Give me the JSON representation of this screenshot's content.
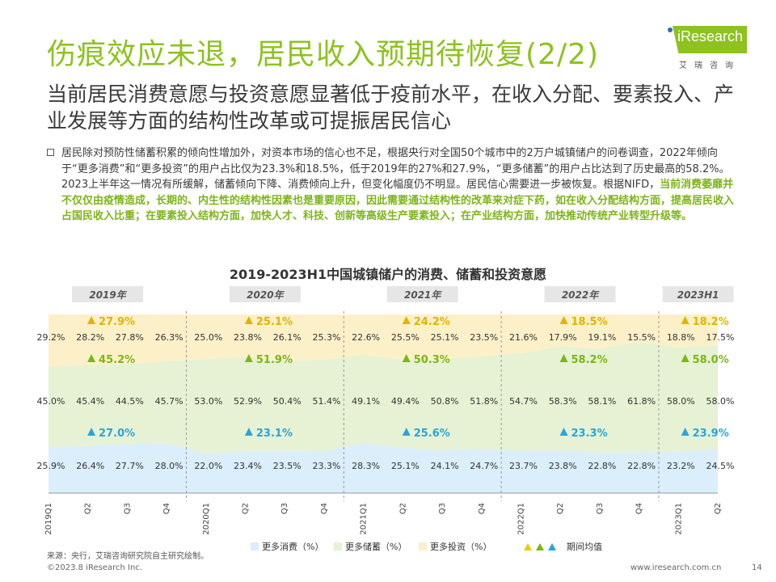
{
  "header": {
    "title": "伤痕效应未退，居民收入预期待恢复(2/2)",
    "logo_text": "iResearch",
    "logo_sub": "艾瑞咨询",
    "subtitle": "当前居民消费意愿与投资意愿显著低于疫前水平，在收入分配、要素投入、产业发展等方面的结构性改革或可提振居民信心"
  },
  "body": {
    "para_normal": "居民除对预防性储蓄积累的倾向性增加外，对资本市场的信心也不足，根据央行对全国50个城市中的2万户城镇储户的问卷调查，2022年倾向于“更多消费”和“更多投资”的用户占比仅为23.3%和18.5%，低于2019年的27%和27.9%，“更多储蓄”的用户占比达到了历史最高的58.2%。2023上半年这一情况有所缓解，储蓄倾向下降、消费倾向上升，但变化幅度仍不明显。居民信心需要进一步被恢复。根据NIFD，",
    "para_highlight": "当前消费萎靡并不仅仅由疫情造成，长期的、内生性的结构性因素也是重要原因，因此需要通过结构性的改革来对症下药，如在收入分配结构方面，提高居民收入占国民收入比重；在要素投入结构方面，加快人才、科技、创新等高级生产要素投入；在产业结构方面，加快推动传统产业转型升级等。"
  },
  "chart_data": {
    "type": "area",
    "title": "2019-2023H1中国城镇储户的消费、储蓄和投资意愿",
    "categories": [
      "2019Q1",
      "Q2",
      "Q3",
      "Q4",
      "2020Q1",
      "Q2",
      "Q3",
      "Q4",
      "2021Q1",
      "Q2",
      "Q3",
      "Q4",
      "2022Q1",
      "Q2",
      "Q3",
      "Q4",
      "2023Q1",
      "Q2"
    ],
    "years": [
      "2019年",
      "2020年",
      "2021年",
      "2022年",
      "2023H1"
    ],
    "stacked_percent": true,
    "series": [
      {
        "name": "更多消费（%）",
        "color": "#dbeefb",
        "label_color": "#2aa4de",
        "values": [
          25.9,
          26.4,
          27.7,
          28.0,
          22.0,
          23.4,
          23.5,
          23.3,
          28.3,
          25.1,
          24.1,
          24.7,
          23.7,
          23.8,
          22.8,
          22.8,
          23.2,
          24.5
        ],
        "labels": [
          "25.9%",
          "26.4%",
          "27.7%",
          "28.0%",
          "22.0%",
          "23.4%",
          "23.5%",
          "23.3%",
          "28.3%",
          "25.1%",
          "24.1%",
          "24.7%",
          "23.7%",
          "23.8%",
          "22.8%",
          "22.8%",
          "23.2%",
          "24.5%"
        ]
      },
      {
        "name": "更多储蓄（%）",
        "color": "#e6f2d3",
        "label_color": "#7cb518",
        "values": [
          45.0,
          45.4,
          44.5,
          45.7,
          53.0,
          52.9,
          50.4,
          51.4,
          49.1,
          49.4,
          50.8,
          51.8,
          54.7,
          58.3,
          58.1,
          61.8,
          58.0,
          58.0
        ],
        "labels": [
          "45.0%",
          "45.4%",
          "44.5%",
          "45.7%",
          "53.0%",
          "52.9%",
          "50.4%",
          "51.4%",
          "49.1%",
          "49.4%",
          "50.8%",
          "51.8%",
          "54.7%",
          "58.3%",
          "58.1%",
          "61.8%",
          "58.0%",
          "58.0%"
        ]
      },
      {
        "name": "更多投资（%）",
        "color": "#fcf0c9",
        "label_color": "#e0b400",
        "values": [
          29.2,
          28.2,
          27.8,
          26.3,
          25.0,
          23.8,
          26.1,
          25.3,
          22.6,
          25.5,
          25.1,
          23.5,
          21.6,
          17.9,
          19.1,
          15.5,
          18.8,
          17.5
        ],
        "labels": [
          "29.2%",
          "28.2%",
          "27.8%",
          "26.3%",
          "25.0%",
          "23.8%",
          "26.1%",
          "25.3%",
          "22.6%",
          "25.5%",
          "25.1%",
          "23.5%",
          "21.6%",
          "17.9%",
          "19.1%",
          "15.5%",
          "18.8%",
          "17.5%"
        ]
      }
    ],
    "period_means": [
      {
        "period": "2019年",
        "consume": "27.0%",
        "save": "45.2%",
        "invest": "27.9%"
      },
      {
        "period": "2020年",
        "consume": "23.1%",
        "save": "51.9%",
        "invest": "25.1%"
      },
      {
        "period": "2021年",
        "consume": "25.6%",
        "save": "50.3%",
        "invest": "24.2%"
      },
      {
        "period": "2022年",
        "consume": "23.3%",
        "save": "58.2%",
        "invest": "18.5%"
      },
      {
        "period": "2023H1",
        "consume": "23.9%",
        "save": "58.0%",
        "invest": "18.2%"
      }
    ],
    "legend_mean": "期间均值",
    "ylim": [
      0,
      100
    ]
  },
  "footer": {
    "source": "来源：央行，艾瑞咨询研究院自主研究绘制。",
    "copyright": "©2023.8 iResearch Inc.",
    "website": "www.iresearch.com.cn",
    "page": "14"
  }
}
